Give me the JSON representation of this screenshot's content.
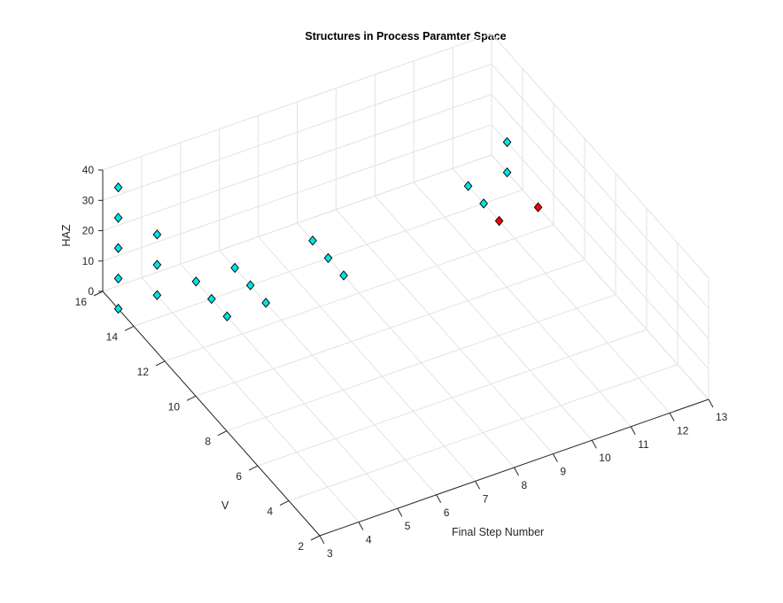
{
  "chart_data": {
    "type": "scatter",
    "title": "Structures in Process Paramter Space",
    "xlabel": "Final Step Number",
    "ylabel": "V",
    "zlabel": "HAZ",
    "xlim": [
      3,
      13
    ],
    "ylim": [
      2,
      16
    ],
    "zlim": [
      0,
      40
    ],
    "xticks": [
      3,
      4,
      5,
      6,
      7,
      8,
      9,
      10,
      11,
      12,
      13
    ],
    "yticks": [
      2,
      4,
      6,
      8,
      10,
      12,
      14,
      16
    ],
    "zticks": [
      0,
      10,
      20,
      30,
      40
    ],
    "grid": true,
    "marker": "diamond",
    "series": [
      {
        "color": "#00e5e5",
        "points": [
          {
            "x": 3,
            "y": 15,
            "z": 0
          },
          {
            "x": 3,
            "y": 15,
            "z": 10
          },
          {
            "x": 3,
            "y": 15,
            "z": 20
          },
          {
            "x": 3,
            "y": 15,
            "z": 30
          },
          {
            "x": 3,
            "y": 15,
            "z": 40
          },
          {
            "x": 4,
            "y": 15,
            "z": 0
          },
          {
            "x": 4,
            "y": 15,
            "z": 10
          },
          {
            "x": 4,
            "y": 15,
            "z": 20
          },
          {
            "x": 5,
            "y": 15,
            "z": 0
          },
          {
            "x": 5,
            "y": 14,
            "z": 0
          },
          {
            "x": 5,
            "y": 13,
            "z": 0
          },
          {
            "x": 6,
            "y": 15,
            "z": 0
          },
          {
            "x": 6,
            "y": 14,
            "z": 0
          },
          {
            "x": 6,
            "y": 13,
            "z": 0
          },
          {
            "x": 8,
            "y": 15,
            "z": 0
          },
          {
            "x": 8,
            "y": 14,
            "z": 0
          },
          {
            "x": 8,
            "y": 13,
            "z": 0
          },
          {
            "x": 12,
            "y": 15,
            "z": 0
          },
          {
            "x": 12,
            "y": 14,
            "z": 0
          },
          {
            "x": 13,
            "y": 15,
            "z": 0
          },
          {
            "x": 13,
            "y": 15,
            "z": 10
          }
        ]
      },
      {
        "color": "#ff0000",
        "points": [
          {
            "x": 12,
            "y": 13,
            "z": 0
          },
          {
            "x": 13,
            "y": 13,
            "z": 0
          }
        ]
      }
    ]
  }
}
